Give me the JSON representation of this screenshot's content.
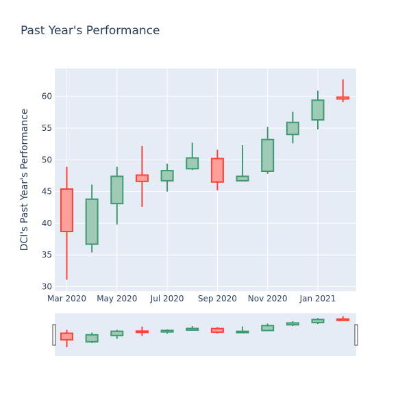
{
  "chart_data": {
    "type": "candlestick",
    "title": "Past Year's Performance",
    "ylabel": "DCI's Past Year's Performance",
    "xlabel": "",
    "ylim": [
      29.3,
      64.4
    ],
    "yticks": [
      30,
      35,
      40,
      45,
      50,
      55,
      60
    ],
    "xtick_labels": [
      "Mar 2020",
      "May 2020",
      "Jul 2020",
      "Sep 2020",
      "Nov 2020",
      "Jan 2021"
    ],
    "grid": true,
    "has_range_slider": true,
    "colors": {
      "increasing": "#3d9970",
      "increasing_fill": "#9ecab6",
      "decreasing": "#ff4136",
      "decreasing_fill": "#ff9f9a",
      "plot_bg": "#e5ecf6",
      "grid": "#ffffff",
      "text": "#2a3f5f"
    },
    "candles": [
      {
        "month": "2020-03",
        "open": 45.4,
        "high": 48.9,
        "low": 31.1,
        "close": 38.7
      },
      {
        "month": "2020-04",
        "open": 36.7,
        "high": 46.1,
        "low": 35.4,
        "close": 43.8
      },
      {
        "month": "2020-05",
        "open": 43.1,
        "high": 48.9,
        "low": 39.8,
        "close": 47.4
      },
      {
        "month": "2020-06",
        "open": 47.6,
        "high": 52.2,
        "low": 42.6,
        "close": 46.6
      },
      {
        "month": "2020-07",
        "open": 46.7,
        "high": 49.4,
        "low": 45.0,
        "close": 48.3
      },
      {
        "month": "2020-08",
        "open": 48.6,
        "high": 52.7,
        "low": 48.4,
        "close": 50.3
      },
      {
        "month": "2020-09",
        "open": 50.2,
        "high": 51.6,
        "low": 45.2,
        "close": 46.5
      },
      {
        "month": "2020-10",
        "open": 46.7,
        "high": 52.3,
        "low": 46.7,
        "close": 47.4
      },
      {
        "month": "2020-11",
        "open": 48.2,
        "high": 55.2,
        "low": 47.8,
        "close": 53.2
      },
      {
        "month": "2020-12",
        "open": 54.0,
        "high": 57.6,
        "low": 52.6,
        "close": 55.9
      },
      {
        "month": "2021-01",
        "open": 56.3,
        "high": 60.9,
        "low": 54.8,
        "close": 59.4
      },
      {
        "month": "2021-02",
        "open": 59.9,
        "high": 62.7,
        "low": 59.1,
        "close": 59.6
      }
    ]
  }
}
